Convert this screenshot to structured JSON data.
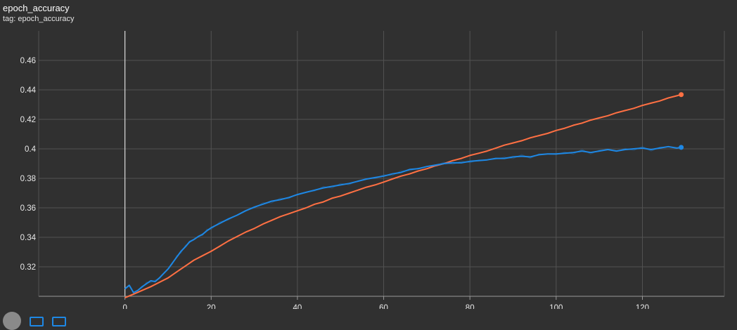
{
  "card": {
    "title": "epoch_accuracy",
    "subtitle": "tag: epoch_accuracy"
  },
  "colors": {
    "background": "#303030",
    "grid": "#525252",
    "series_orange": "#ff7043",
    "series_blue": "#1e88e5",
    "toolbar_icon": "#1e88e5"
  },
  "toolbar": {
    "icons": [
      "avatar-circle-icon",
      "fit-domain-icon",
      "download-icon"
    ]
  },
  "chart_data": {
    "type": "line",
    "title": "epoch_accuracy",
    "xlabel": "",
    "ylabel": "",
    "xlim": [
      -20,
      139
    ],
    "ylim": [
      0.3,
      0.48
    ],
    "x_ticks": [
      0,
      20,
      40,
      60,
      80,
      100,
      120
    ],
    "x_tick_labels": [
      "0",
      "20",
      "40",
      "60",
      "80",
      "100",
      "120"
    ],
    "y_ticks": [
      0.32,
      0.34,
      0.36,
      0.38,
      0.4,
      0.42,
      0.44,
      0.46
    ],
    "y_tick_labels": [
      "0.32",
      "0.34",
      "0.36",
      "0.38",
      "0.4",
      "0.42",
      "0.44",
      "0.46"
    ],
    "grid": true,
    "legend": "none",
    "series": [
      {
        "color": "#ff7043",
        "x": [
          0,
          2,
          4,
          6,
          8,
          10,
          12,
          14,
          16,
          18,
          20,
          22,
          24,
          26,
          28,
          30,
          32,
          34,
          36,
          38,
          40,
          42,
          44,
          46,
          48,
          50,
          52,
          54,
          56,
          58,
          60,
          62,
          64,
          66,
          68,
          70,
          72,
          74,
          76,
          78,
          80,
          82,
          84,
          86,
          88,
          90,
          92,
          94,
          96,
          98,
          100,
          102,
          104,
          106,
          108,
          110,
          112,
          114,
          116,
          118,
          120,
          122,
          124,
          126,
          128,
          129
        ],
        "y": [
          0.299,
          0.3015,
          0.304,
          0.3065,
          0.3095,
          0.3125,
          0.3165,
          0.3205,
          0.3245,
          0.3275,
          0.3305,
          0.334,
          0.3375,
          0.3405,
          0.3435,
          0.346,
          0.349,
          0.3515,
          0.354,
          0.356,
          0.358,
          0.36,
          0.3625,
          0.364,
          0.3665,
          0.368,
          0.37,
          0.372,
          0.374,
          0.3755,
          0.3775,
          0.3795,
          0.3815,
          0.383,
          0.385,
          0.3865,
          0.3885,
          0.39,
          0.392,
          0.3935,
          0.3955,
          0.397,
          0.3985,
          0.4005,
          0.4025,
          0.404,
          0.4055,
          0.4075,
          0.409,
          0.4105,
          0.4125,
          0.414,
          0.416,
          0.4175,
          0.4195,
          0.421,
          0.4225,
          0.4245,
          0.426,
          0.4275,
          0.4295,
          0.431,
          0.4325,
          0.4345,
          0.436,
          0.4368
        ],
        "end_marker": true
      },
      {
        "color": "#1e88e5",
        "x": [
          0,
          1,
          2,
          3,
          4,
          5,
          6,
          7,
          8,
          9,
          10,
          11,
          12,
          13,
          14,
          15,
          16,
          17,
          18,
          19,
          20,
          22,
          24,
          26,
          28,
          30,
          32,
          34,
          36,
          38,
          40,
          42,
          44,
          46,
          48,
          50,
          52,
          54,
          56,
          58,
          60,
          62,
          64,
          66,
          68,
          70,
          72,
          74,
          76,
          78,
          80,
          82,
          84,
          86,
          88,
          90,
          92,
          94,
          96,
          98,
          100,
          102,
          104,
          106,
          108,
          110,
          112,
          114,
          116,
          118,
          120,
          122,
          124,
          126,
          128,
          129
        ],
        "y": [
          0.305,
          0.3075,
          0.3025,
          0.304,
          0.3065,
          0.3085,
          0.3105,
          0.31,
          0.3125,
          0.3155,
          0.3185,
          0.3225,
          0.3265,
          0.3305,
          0.3335,
          0.337,
          0.3385,
          0.3405,
          0.342,
          0.3445,
          0.3465,
          0.3495,
          0.3525,
          0.355,
          0.358,
          0.3605,
          0.3625,
          0.3645,
          0.3655,
          0.367,
          0.369,
          0.3705,
          0.372,
          0.3735,
          0.3745,
          0.3755,
          0.3765,
          0.378,
          0.3795,
          0.3805,
          0.3815,
          0.383,
          0.384,
          0.386,
          0.3865,
          0.388,
          0.389,
          0.39,
          0.3905,
          0.3905,
          0.3915,
          0.392,
          0.3925,
          0.3935,
          0.3935,
          0.3945,
          0.395,
          0.3945,
          0.396,
          0.3965,
          0.3965,
          0.397,
          0.3975,
          0.3985,
          0.3975,
          0.3985,
          0.3995,
          0.3985,
          0.3995,
          0.4,
          0.4005,
          0.3995,
          0.4005,
          0.4015,
          0.4005,
          0.401
        ],
        "end_marker": true
      }
    ]
  }
}
